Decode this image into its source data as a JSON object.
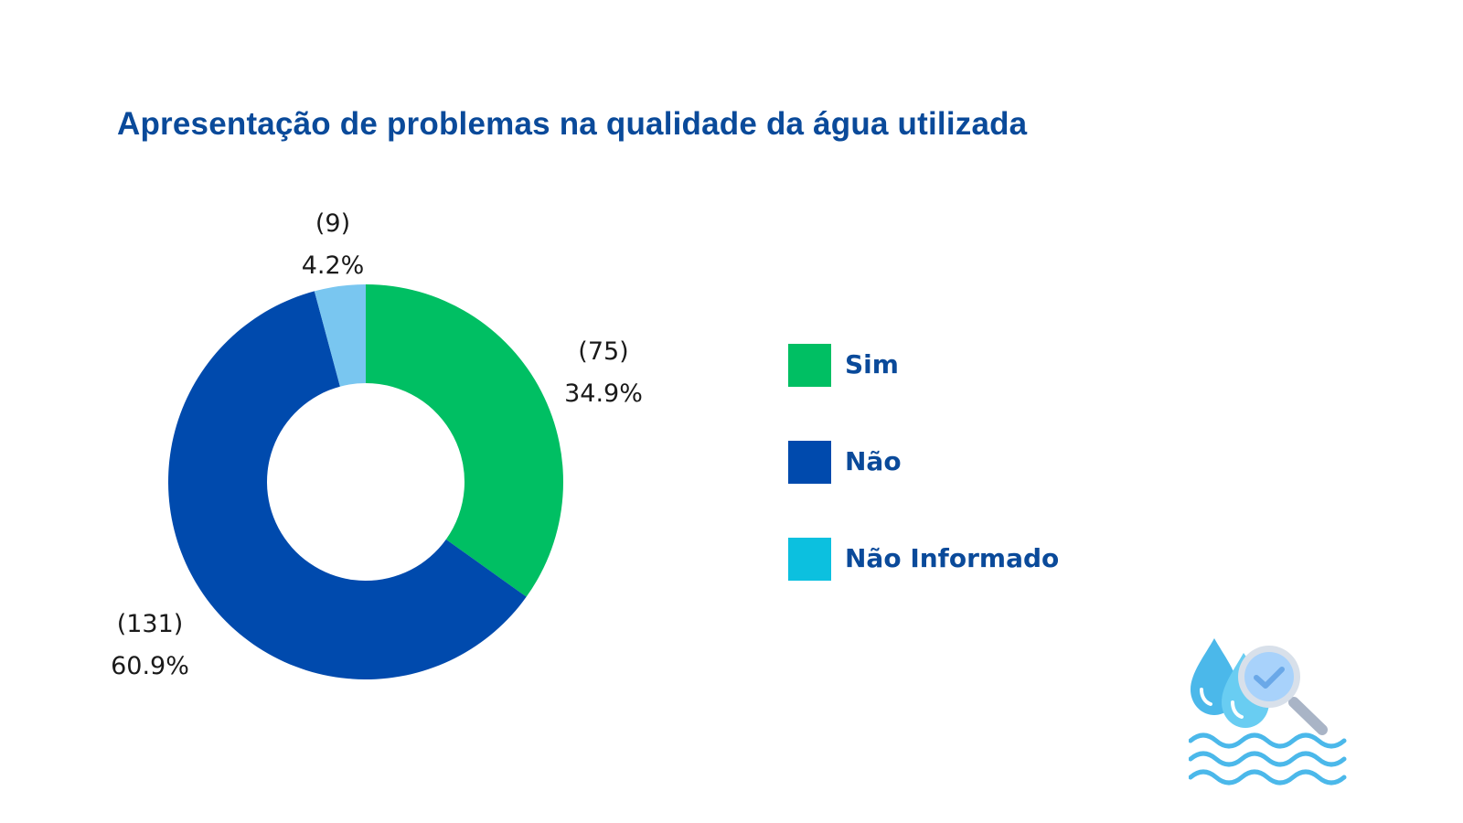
{
  "chart_data": {
    "type": "pie",
    "variant": "donut",
    "title": "Apresentação de problemas na qualidade da água utilizada",
    "categories": [
      "Sim",
      "Não",
      "Não Informado"
    ],
    "values": [
      75,
      131,
      9
    ],
    "percent_labels": [
      "34.9%",
      "60.9%",
      "4.2%"
    ],
    "count_labels": [
      "(75)",
      "(131)",
      "(9)"
    ],
    "legend_position": "right",
    "slice_colors": [
      "#00bf63",
      "#004aad",
      "#79c6f0"
    ],
    "legend_colors": [
      "#00bf63",
      "#004aad",
      "#0cc0df"
    ]
  },
  "decoration": {
    "icon": "water-quality-icon"
  }
}
